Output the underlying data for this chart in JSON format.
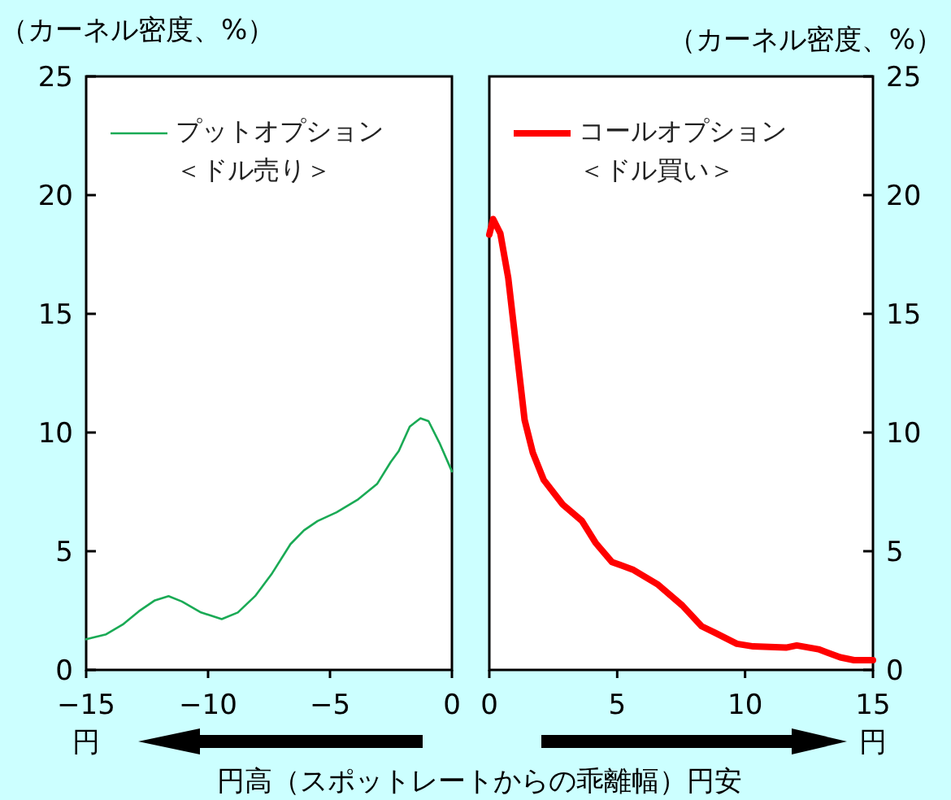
{
  "chart_data": [
    {
      "type": "line",
      "ylabel": "（カーネル密度、%）",
      "annotations": [
        "円",
        "円高（スポットレートからの乖離幅）円安"
      ],
      "xlim": [
        -15,
        0
      ],
      "xticks": [
        -15,
        -10,
        -5,
        0
      ],
      "ylim": [
        0,
        25
      ],
      "yticks": [
        0,
        5,
        10,
        15,
        20,
        25
      ],
      "legend": "top",
      "series": [
        {
          "name": "プットオプション＜ドル売り＞",
          "color": "#1aaa55",
          "x": [
            -15,
            -14.18,
            -13.5,
            -12.84,
            -12.18,
            -11.62,
            -11.07,
            -10.29,
            -9.44,
            -8.78,
            -8.07,
            -7.4,
            -6.62,
            -6.07,
            -5.51,
            -4.73,
            -3.84,
            -3.07,
            -2.51,
            -2.18,
            -1.73,
            -1.29,
            -0.96,
            -0.51,
            0
          ],
          "values": [
            1.29,
            1.5,
            1.91,
            2.47,
            2.93,
            3.11,
            2.88,
            2.42,
            2.14,
            2.42,
            3.11,
            4.03,
            5.3,
            5.88,
            6.27,
            6.64,
            7.19,
            7.83,
            8.76,
            9.22,
            10.25,
            10.6,
            10.48,
            9.56,
            8.36
          ]
        }
      ]
    },
    {
      "type": "line",
      "y2label": "（カーネル密度、%）",
      "annotations": [
        "円"
      ],
      "xlim": [
        0,
        15
      ],
      "xticks": [
        0,
        5,
        10,
        15
      ],
      "y2lim": [
        0,
        25
      ],
      "y2ticks": [
        0,
        5,
        10,
        15,
        20,
        25
      ],
      "legend": "top",
      "series": [
        {
          "name": "コールオプション＜ドル買い＞",
          "color": "#ff0000",
          "axis": "y2",
          "x": [
            0,
            0.15,
            0.43,
            0.74,
            1.06,
            1.38,
            1.7,
            2.13,
            2.87,
            3.62,
            4.15,
            4.79,
            5.64,
            6.6,
            7.55,
            8.3,
            8.83,
            9.68,
            10.32,
            11.6,
            12.02,
            12.87,
            13.72,
            14.26,
            15
          ],
          "values": [
            18.34,
            18.99,
            18.39,
            16.51,
            13.52,
            10.53,
            9.15,
            8.0,
            6.97,
            6.28,
            5.36,
            4.55,
            4.21,
            3.59,
            2.71,
            1.84,
            1.56,
            1.1,
            0.99,
            0.94,
            1.03,
            0.87,
            0.53,
            0.41,
            0.41
          ]
        }
      ]
    }
  ]
}
